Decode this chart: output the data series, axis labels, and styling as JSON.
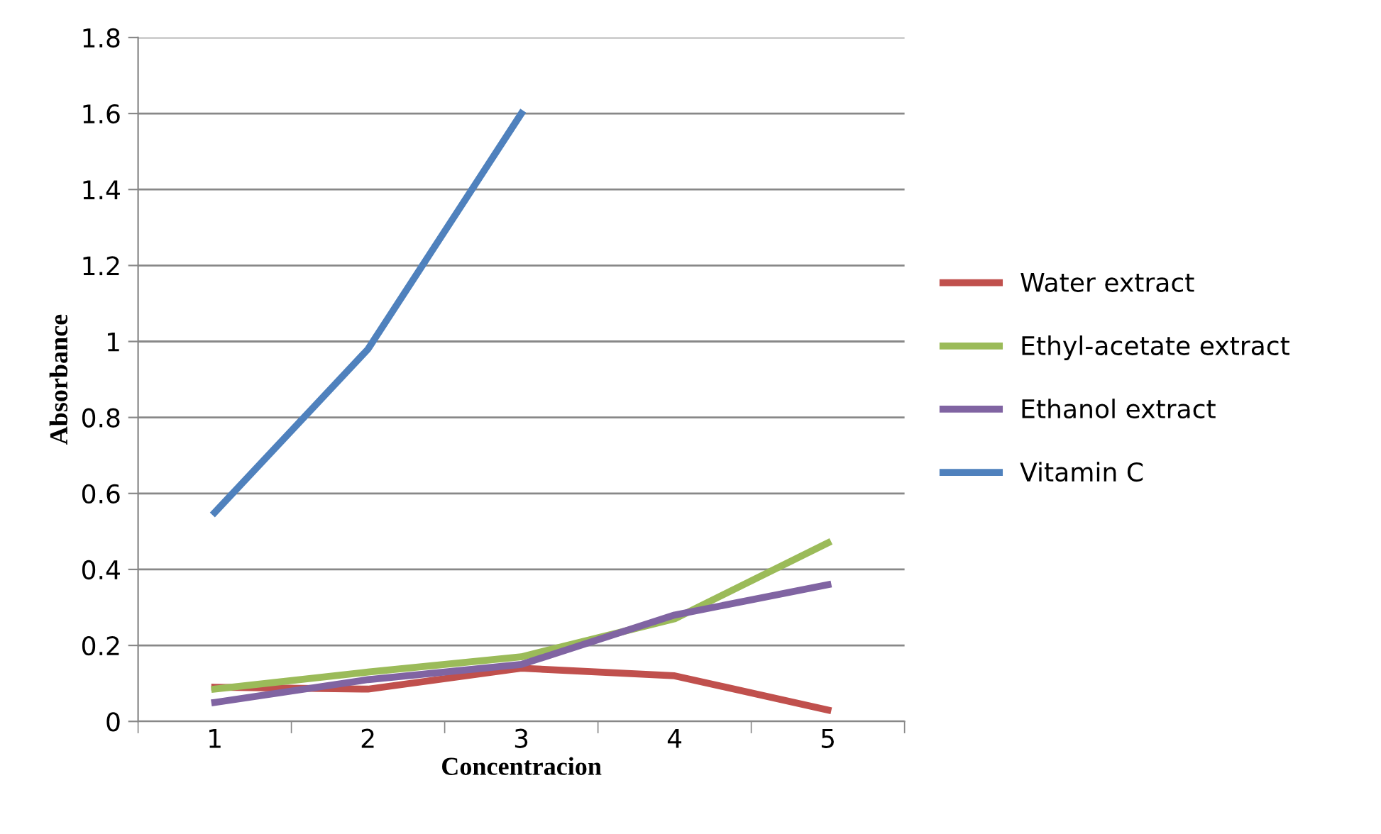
{
  "chart_data": {
    "type": "line",
    "xlabel": "Concentracion",
    "ylabel": "Absorbance",
    "categories": [
      "1",
      "2",
      "3",
      "4",
      "5"
    ],
    "series": [
      {
        "name": "Water extract",
        "color": "#c0504d",
        "values": [
          0.09,
          0.085,
          0.14,
          0.12,
          0.03
        ]
      },
      {
        "name": "Ethyl-acetate extract",
        "color": "#9bbb59",
        "values": [
          0.085,
          0.13,
          0.17,
          0.27,
          0.47
        ]
      },
      {
        "name": "Ethanol extract",
        "color": "#8064a2",
        "values": [
          0.05,
          0.11,
          0.15,
          0.28,
          0.36
        ]
      },
      {
        "name": "Vitamin C",
        "color": "#4f81bd",
        "values": [
          0.55,
          0.98,
          1.6,
          null,
          null
        ]
      }
    ],
    "ylim": [
      0,
      1.8
    ],
    "yticks": [
      0,
      0.2,
      0.4,
      0.6,
      0.8,
      1,
      1.2,
      1.4,
      1.6,
      1.8
    ],
    "grid": "y",
    "legend": "right",
    "marker": "none",
    "line_style": "solid"
  }
}
